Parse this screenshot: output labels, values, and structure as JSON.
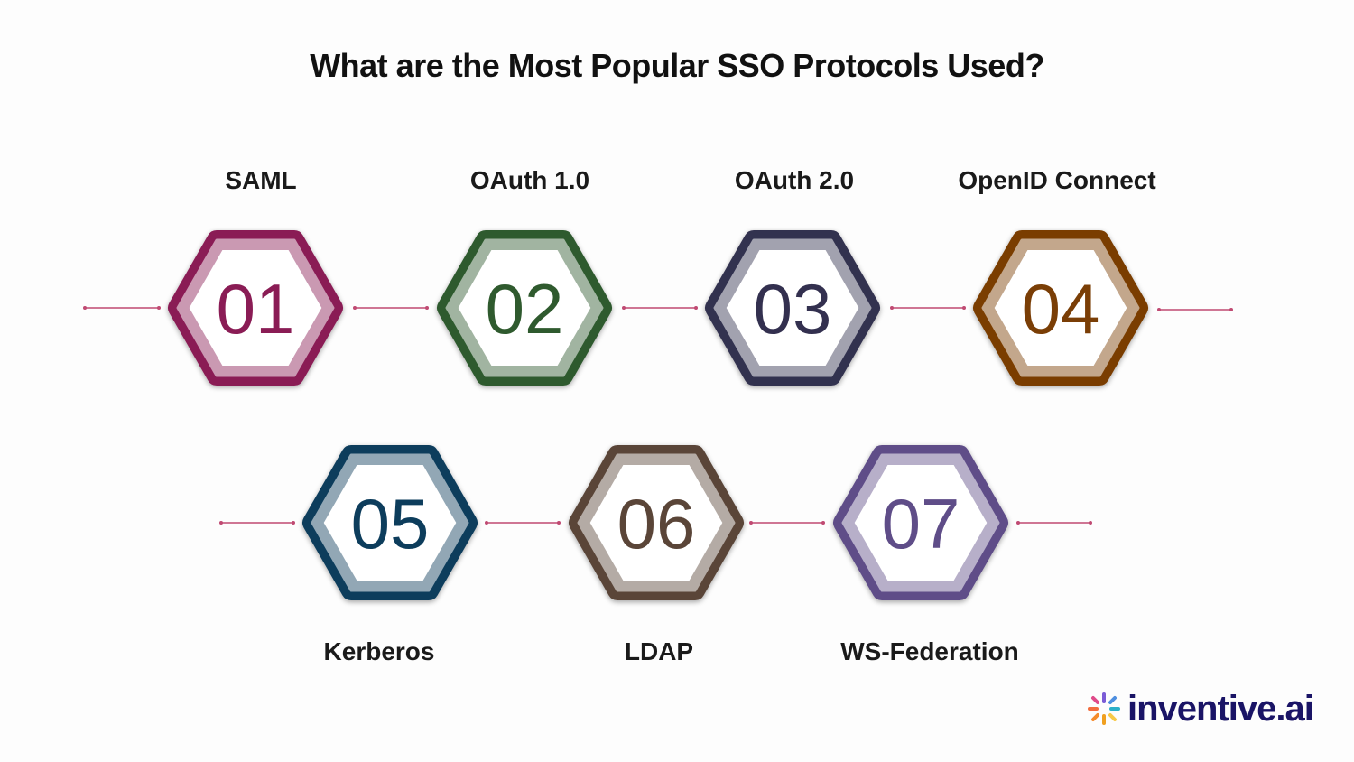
{
  "title": "What are the Most Popular SSO Protocols Used?",
  "protocols": [
    {
      "number": "01",
      "name": "SAML",
      "color": "#8a1c55"
    },
    {
      "number": "02",
      "name": "OAuth 1.0",
      "color": "#2f5a2e"
    },
    {
      "number": "03",
      "name": "OAuth 2.0",
      "color": "#33304f"
    },
    {
      "number": "04",
      "name": "OpenID Connect",
      "color": "#7a3e06"
    },
    {
      "number": "05",
      "name": "Kerberos",
      "color": "#0d3d5c"
    },
    {
      "number": "06",
      "name": "LDAP",
      "color": "#5a4538"
    },
    {
      "number": "07",
      "name": "WS-Federation",
      "color": "#5f4d88"
    }
  ],
  "connector_color": "#c04a72",
  "logo": {
    "text": "inventive.ai"
  }
}
